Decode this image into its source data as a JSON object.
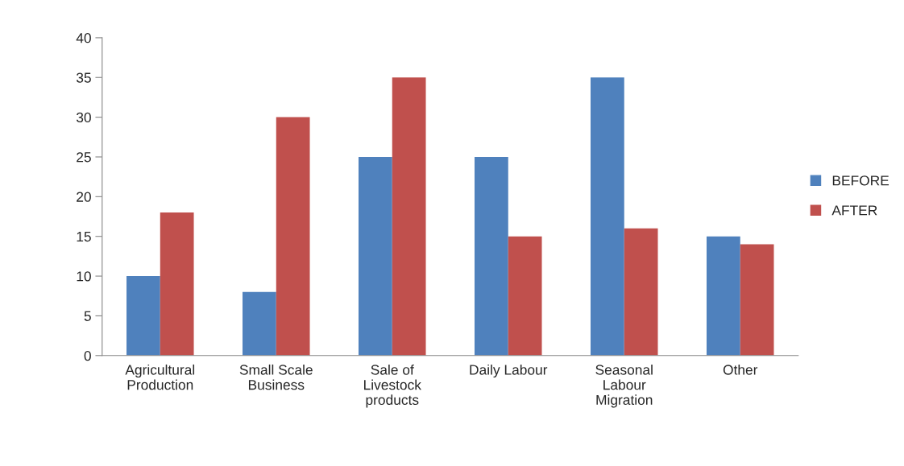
{
  "chart_data": {
    "type": "bar",
    "categories": [
      "Agricultural\nProduction",
      "Small Scale\nBusiness",
      "Sale of\nLivestock\nproducts",
      "Daily Labour",
      "Seasonal\nLabour\nMigration",
      "Other"
    ],
    "series": [
      {
        "name": "BEFORE",
        "color": "#4f81bd",
        "values": [
          10,
          8,
          25,
          25,
          35,
          15
        ]
      },
      {
        "name": "AFTER",
        "color": "#c0504d",
        "values": [
          18,
          30,
          35,
          15,
          16,
          14
        ]
      }
    ],
    "ylim": [
      0,
      40
    ],
    "yticks": [
      0,
      5,
      10,
      15,
      20,
      25,
      30,
      35,
      40
    ],
    "grid": false,
    "legend": "right"
  }
}
